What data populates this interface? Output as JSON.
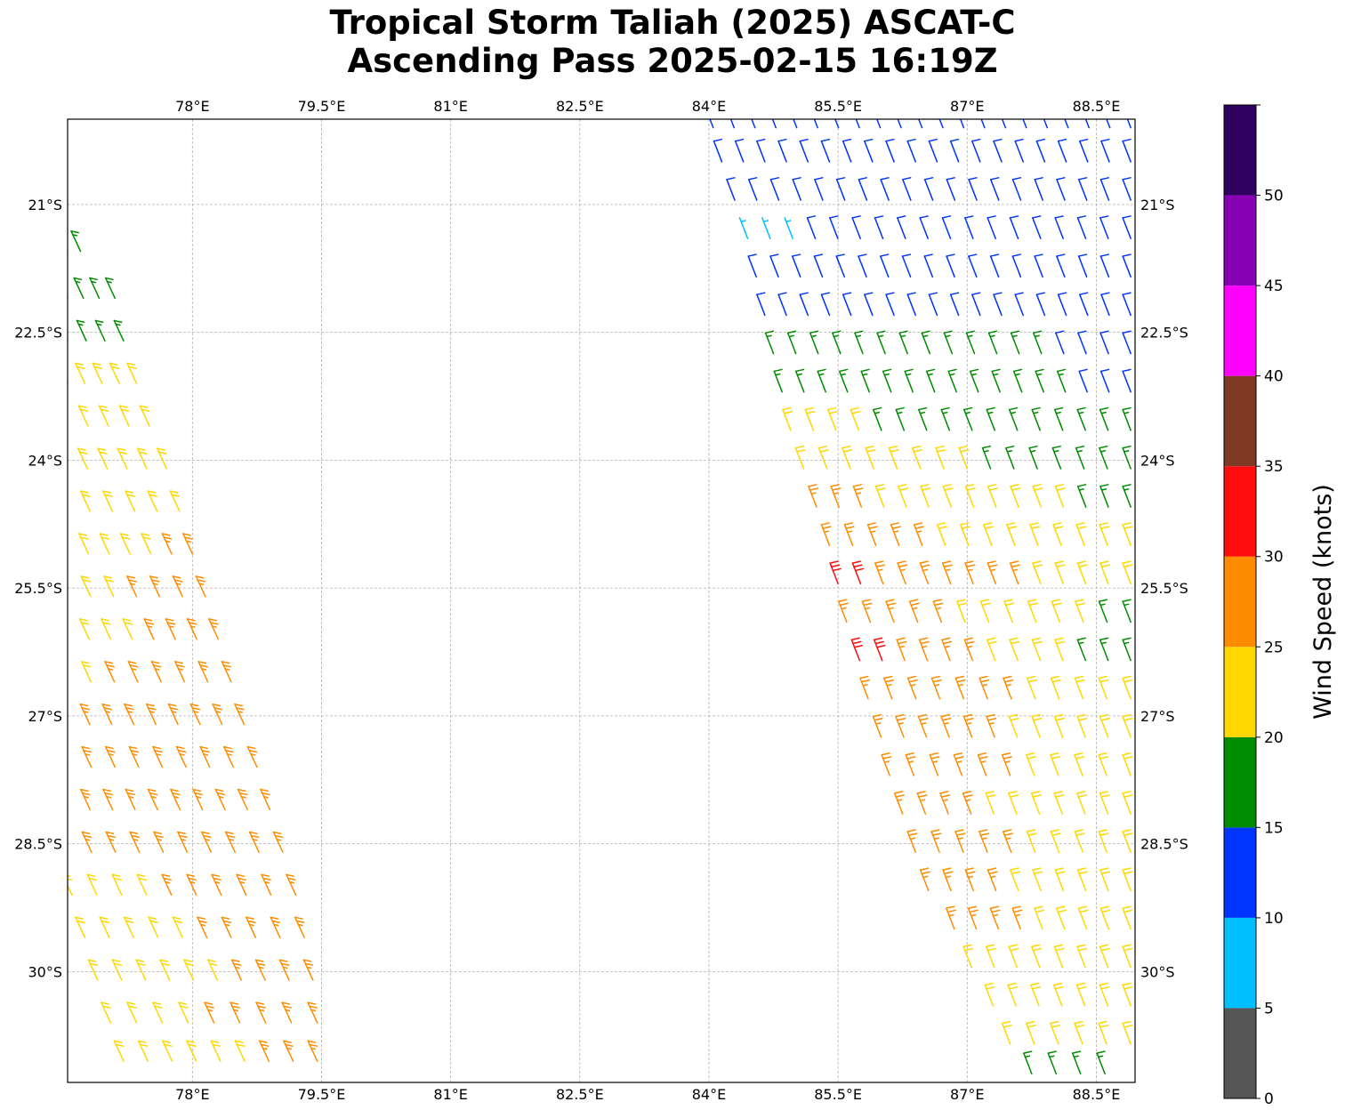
{
  "chart_data": {
    "type": "scatter",
    "title_lines": [
      "Tropical Storm Taliah (2025) ASCAT-C",
      "Ascending Pass 2025-02-15 16:19Z"
    ],
    "xlim": [
      76.55,
      88.95
    ],
    "ylim": [
      -31.3,
      -20.0
    ],
    "x_ticks": [
      78,
      79.5,
      81,
      82.5,
      84,
      85.5,
      87,
      88.5
    ],
    "x_tick_labels": [
      "78°E",
      "79.5°E",
      "81°E",
      "82.5°E",
      "84°E",
      "85.5°E",
      "87°E",
      "88.5°E"
    ],
    "y_ticks": [
      -21,
      -22.5,
      -24,
      -25.5,
      -27,
      -28.5,
      -30
    ],
    "y_tick_labels": [
      "21°S",
      "22.5°S",
      "24°S",
      "25.5°S",
      "27°S",
      "28.5°S",
      "30°S"
    ],
    "grid": true,
    "colorbar": {
      "label": "Wind Speed (knots)",
      "bounds": [
        0,
        5,
        10,
        15,
        20,
        25,
        30,
        35,
        40,
        45,
        50,
        55
      ],
      "tick_values": [
        0,
        5,
        10,
        15,
        20,
        25,
        30,
        35,
        40,
        45,
        50
      ],
      "tick_labels": [
        "0",
        "5",
        "10",
        "15",
        "20",
        "25",
        "30",
        "35",
        "40",
        "45",
        "50"
      ],
      "colors": [
        "#555555",
        "#00bfff",
        "#0035ff",
        "#008c00",
        "#ffd700",
        "#ff8c00",
        "#ff0d0d",
        "#7f3a26",
        "#ff00ff",
        "#8800b3",
        "#2e0060"
      ]
    },
    "swaths": [
      {
        "name": "west-swath",
        "rows": [
          {
            "lat": -21.55,
            "x0": 76.55,
            "x1": 76.7,
            "n": 2,
            "speed0": 17,
            "speed1": 17
          },
          {
            "lat": -22.1,
            "x0": 76.55,
            "x1": 77.1,
            "n": 4,
            "speed0": 17,
            "speed1": 19
          },
          {
            "lat": -22.6,
            "x0": 76.55,
            "x1": 77.2,
            "n": 4,
            "speed0": 18,
            "speed1": 19
          },
          {
            "lat": -23.1,
            "x0": 76.55,
            "x1": 77.35,
            "n": 5,
            "speed0": 19,
            "speed1": 21
          },
          {
            "lat": -23.6,
            "x0": 76.55,
            "x1": 77.5,
            "n": 5,
            "speed0": 21,
            "speed1": 22
          },
          {
            "lat": -24.1,
            "x0": 76.55,
            "x1": 77.7,
            "n": 6,
            "speed0": 22,
            "speed1": 23
          },
          {
            "lat": -24.6,
            "x0": 76.55,
            "x1": 77.85,
            "n": 6,
            "speed0": 22,
            "speed1": 24
          },
          {
            "lat": -25.1,
            "x0": 76.55,
            "x1": 78.0,
            "n": 7,
            "speed0": 22,
            "speed1": 25
          },
          {
            "lat": -25.6,
            "x0": 76.55,
            "x1": 78.15,
            "n": 7,
            "speed0": 23,
            "speed1": 26
          },
          {
            "lat": -26.1,
            "x0": 76.55,
            "x1": 78.3,
            "n": 8,
            "speed0": 23,
            "speed1": 26
          },
          {
            "lat": -26.6,
            "x0": 76.55,
            "x1": 78.45,
            "n": 8,
            "speed0": 24,
            "speed1": 27
          },
          {
            "lat": -27.1,
            "x0": 76.55,
            "x1": 78.6,
            "n": 9,
            "speed0": 25,
            "speed1": 27
          },
          {
            "lat": -27.6,
            "x0": 76.55,
            "x1": 78.75,
            "n": 9,
            "speed0": 26,
            "speed1": 26
          },
          {
            "lat": -28.1,
            "x0": 76.55,
            "x1": 78.9,
            "n": 10,
            "speed0": 27,
            "speed1": 25
          },
          {
            "lat": -28.6,
            "x0": 76.55,
            "x1": 79.05,
            "n": 10,
            "speed0": 26,
            "speed1": 26
          },
          {
            "lat": -29.1,
            "x0": 76.6,
            "x1": 79.2,
            "n": 10,
            "speed0": 23,
            "speed1": 27
          },
          {
            "lat": -29.6,
            "x0": 76.75,
            "x1": 79.3,
            "n": 10,
            "speed0": 22,
            "speed1": 27
          },
          {
            "lat": -30.1,
            "x0": 76.9,
            "x1": 79.4,
            "n": 10,
            "speed0": 22,
            "speed1": 26
          },
          {
            "lat": -30.6,
            "x0": 77.05,
            "x1": 79.45,
            "n": 9,
            "speed0": 22,
            "speed1": 27
          },
          {
            "lat": -31.05,
            "x0": 77.2,
            "x1": 79.45,
            "n": 9,
            "speed0": 21,
            "speed1": 26
          }
        ]
      },
      {
        "name": "east-swath",
        "rows": [
          {
            "lat": -20.1,
            "x0": 84.05,
            "x1": 88.9,
            "n": 21,
            "speed0": 12,
            "speed1": 13
          },
          {
            "lat": -20.5,
            "x0": 84.15,
            "x1": 88.9,
            "n": 20,
            "speed0": 11,
            "speed1": 13
          },
          {
            "lat": -20.95,
            "x0": 84.3,
            "x1": 88.9,
            "n": 19,
            "speed0": 12,
            "speed1": 12
          },
          {
            "lat": -21.4,
            "x0": 84.45,
            "x1": 88.9,
            "n": 18,
            "speed0": 9,
            "speed1": 13
          },
          {
            "lat": -21.85,
            "x0": 84.55,
            "x1": 88.9,
            "n": 18,
            "speed0": 13,
            "speed1": 12
          },
          {
            "lat": -22.3,
            "x0": 84.65,
            "x1": 88.9,
            "n": 18,
            "speed0": 13,
            "speed1": 13
          },
          {
            "lat": -22.75,
            "x0": 84.75,
            "x1": 88.9,
            "n": 17,
            "speed0": 16,
            "speed1": 14
          },
          {
            "lat": -23.2,
            "x0": 84.85,
            "x1": 88.9,
            "n": 17,
            "speed0": 17,
            "speed1": 14
          },
          {
            "lat": -23.65,
            "x0": 84.95,
            "x1": 88.9,
            "n": 16,
            "speed0": 21,
            "speed1": 15
          },
          {
            "lat": -24.1,
            "x0": 85.1,
            "x1": 88.9,
            "n": 15,
            "speed0": 22,
            "speed1": 17
          },
          {
            "lat": -24.55,
            "x0": 85.25,
            "x1": 88.9,
            "n": 15,
            "speed0": 26,
            "speed1": 18
          },
          {
            "lat": -25.0,
            "x0": 85.4,
            "x1": 88.9,
            "n": 14,
            "speed0": 27,
            "speed1": 20
          },
          {
            "lat": -25.45,
            "x0": 85.5,
            "x1": 88.9,
            "n": 14,
            "speed0": 31,
            "speed1": 21
          },
          {
            "lat": -25.9,
            "x0": 85.6,
            "x1": 88.9,
            "n": 13,
            "speed0": 28,
            "speed1": 18
          },
          {
            "lat": -26.35,
            "x0": 85.75,
            "x1": 88.9,
            "n": 13,
            "speed0": 31,
            "speed1": 17
          },
          {
            "lat": -26.8,
            "x0": 85.85,
            "x1": 88.9,
            "n": 12,
            "speed0": 29,
            "speed1": 21
          },
          {
            "lat": -27.25,
            "x0": 86.0,
            "x1": 88.9,
            "n": 12,
            "speed0": 27,
            "speed1": 22
          },
          {
            "lat": -27.7,
            "x0": 86.1,
            "x1": 88.9,
            "n": 11,
            "speed0": 27,
            "speed1": 22
          },
          {
            "lat": -28.15,
            "x0": 86.25,
            "x1": 88.9,
            "n": 11,
            "speed0": 26,
            "speed1": 22
          },
          {
            "lat": -28.6,
            "x0": 86.4,
            "x1": 88.9,
            "n": 10,
            "speed0": 27,
            "speed1": 22
          },
          {
            "lat": -29.05,
            "x0": 86.55,
            "x1": 88.9,
            "n": 10,
            "speed0": 26,
            "speed1": 22
          },
          {
            "lat": -29.5,
            "x0": 86.85,
            "x1": 88.9,
            "n": 9,
            "speed0": 26,
            "speed1": 22
          },
          {
            "lat": -29.95,
            "x0": 87.05,
            "x1": 88.9,
            "n": 8,
            "speed0": 24,
            "speed1": 22
          },
          {
            "lat": -30.4,
            "x0": 87.3,
            "x1": 88.9,
            "n": 7,
            "speed0": 22,
            "speed1": 21
          },
          {
            "lat": -30.85,
            "x0": 87.5,
            "x1": 88.9,
            "n": 6,
            "speed0": 21,
            "speed1": 21
          },
          {
            "lat": -31.2,
            "x0": 87.75,
            "x1": 88.6,
            "n": 4,
            "speed0": 19,
            "speed1": 17
          }
        ]
      }
    ]
  }
}
